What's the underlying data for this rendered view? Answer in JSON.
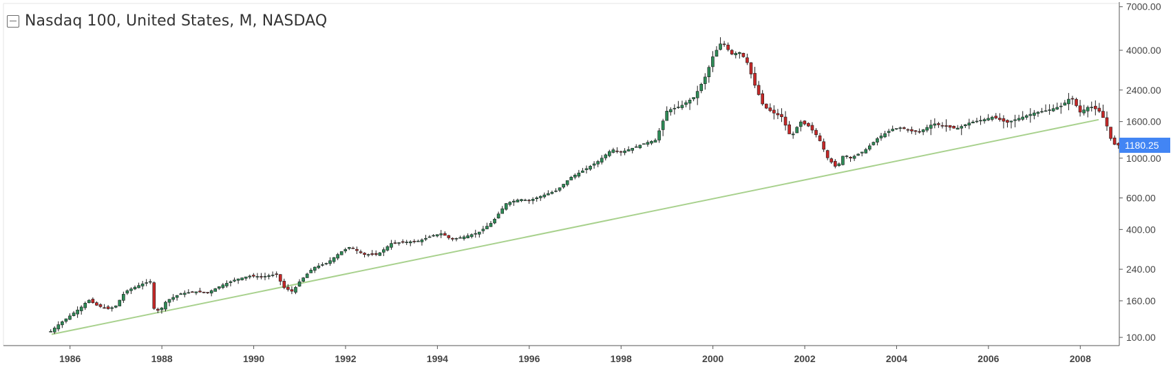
{
  "header": {
    "title": "Nasdaq 100, United States, M, NASDAQ"
  },
  "colors": {
    "up": "#2e8b57",
    "down": "#c62828",
    "wick": "#1a1a1a",
    "trendline": "#a8d18d",
    "last_price_bg": "#4285f4",
    "last_price_text": "#ffffff",
    "axis": "#555555",
    "tick_text": "#444444"
  },
  "chart_data": {
    "type": "candlestick",
    "title": "Nasdaq 100, United States, M, NASDAQ",
    "xlabel": "",
    "ylabel": "",
    "y_scale": "log",
    "ylim": [
      90,
      7300
    ],
    "xlim": [
      1984.55,
      2008.85
    ],
    "grid": false,
    "x_ticks": [
      "1986",
      "1988",
      "1990",
      "1992",
      "1994",
      "1996",
      "1998",
      "2000",
      "2002",
      "2004",
      "2006",
      "2008"
    ],
    "y_ticks": [
      "7000.00",
      "4000.00",
      "2400.00",
      "1600.00",
      "1000.00",
      "600.00",
      "400.00",
      "240.00",
      "160.00",
      "100.00"
    ],
    "last_price": "1180.25",
    "trendline": {
      "start": [
        1985.6,
        104
      ],
      "end": [
        2008.4,
        1640
      ]
    },
    "close_path": [
      [
        1985.58,
        108
      ],
      [
        1985.75,
        118
      ],
      [
        1986.0,
        132
      ],
      [
        1986.25,
        148
      ],
      [
        1986.4,
        162
      ],
      [
        1986.6,
        150
      ],
      [
        1986.85,
        144
      ],
      [
        1987.0,
        150
      ],
      [
        1987.2,
        180
      ],
      [
        1987.4,
        190
      ],
      [
        1987.6,
        200
      ],
      [
        1987.75,
        205
      ],
      [
        1987.83,
        145
      ],
      [
        1987.95,
        140
      ],
      [
        1988.1,
        160
      ],
      [
        1988.4,
        175
      ],
      [
        1988.7,
        180
      ],
      [
        1989.0,
        178
      ],
      [
        1989.3,
        195
      ],
      [
        1989.6,
        210
      ],
      [
        1989.9,
        220
      ],
      [
        1990.2,
        218
      ],
      [
        1990.5,
        225
      ],
      [
        1990.65,
        190
      ],
      [
        1990.85,
        180
      ],
      [
        1991.0,
        205
      ],
      [
        1991.3,
        245
      ],
      [
        1991.6,
        260
      ],
      [
        1991.9,
        300
      ],
      [
        1992.1,
        320
      ],
      [
        1992.4,
        290
      ],
      [
        1992.7,
        290
      ],
      [
        1993.0,
        335
      ],
      [
        1993.3,
        340
      ],
      [
        1993.6,
        345
      ],
      [
        1993.9,
        370
      ],
      [
        1994.1,
        380
      ],
      [
        1994.3,
        352
      ],
      [
        1994.6,
        365
      ],
      [
        1994.9,
        385
      ],
      [
        1995.2,
        440
      ],
      [
        1995.5,
        560
      ],
      [
        1995.8,
        590
      ],
      [
        1996.0,
        580
      ],
      [
        1996.3,
        620
      ],
      [
        1996.6,
        660
      ],
      [
        1996.9,
        780
      ],
      [
        1997.2,
        860
      ],
      [
        1997.5,
        960
      ],
      [
        1997.8,
        1120
      ],
      [
        1998.0,
        1080
      ],
      [
        1998.3,
        1150
      ],
      [
        1998.55,
        1220
      ],
      [
        1998.75,
        1260
      ],
      [
        1999.0,
        1840
      ],
      [
        1999.3,
        1950
      ],
      [
        1999.6,
        2200
      ],
      [
        1999.85,
        2900
      ],
      [
        2000.0,
        3700
      ],
      [
        2000.2,
        4500
      ],
      [
        2000.4,
        3800
      ],
      [
        2000.6,
        3900
      ],
      [
        2000.75,
        3400
      ],
      [
        2000.9,
        2600
      ],
      [
        2001.1,
        1950
      ],
      [
        2001.3,
        1800
      ],
      [
        2001.5,
        1700
      ],
      [
        2001.7,
        1300
      ],
      [
        2001.9,
        1600
      ],
      [
        2002.1,
        1500
      ],
      [
        2002.3,
        1300
      ],
      [
        2002.5,
        1000
      ],
      [
        2002.7,
        880
      ],
      [
        2002.85,
        1050
      ],
      [
        2003.0,
        1000
      ],
      [
        2003.3,
        1100
      ],
      [
        2003.6,
        1300
      ],
      [
        2003.9,
        1450
      ],
      [
        2004.1,
        1480
      ],
      [
        2004.3,
        1420
      ],
      [
        2004.5,
        1400
      ],
      [
        2004.8,
        1560
      ],
      [
        2005.0,
        1520
      ],
      [
        2005.3,
        1460
      ],
      [
        2005.6,
        1580
      ],
      [
        2005.9,
        1640
      ],
      [
        2006.1,
        1700
      ],
      [
        2006.4,
        1580
      ],
      [
        2006.7,
        1680
      ],
      [
        2007.0,
        1790
      ],
      [
        2007.3,
        1850
      ],
      [
        2007.6,
        1960
      ],
      [
        2007.8,
        2200
      ],
      [
        2008.0,
        1800
      ],
      [
        2008.2,
        1950
      ],
      [
        2008.4,
        1850
      ],
      [
        2008.55,
        1600
      ],
      [
        2008.7,
        1200
      ],
      [
        2008.85,
        1180
      ]
    ]
  }
}
